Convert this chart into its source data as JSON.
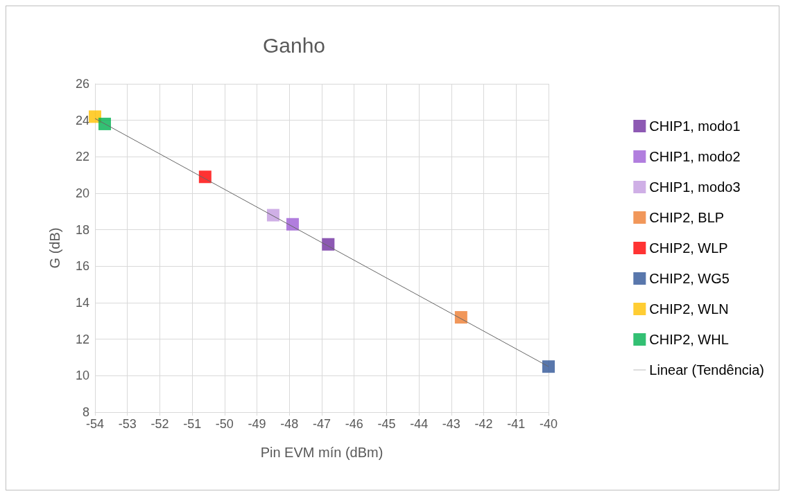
{
  "chart_data": {
    "type": "scatter",
    "title": "Ganho",
    "xlabel": "Pin EVM mín (dBm)",
    "ylabel": "G (dB)",
    "marker": "square",
    "grid": true,
    "legend": "right",
    "xlim": [
      -54,
      -40
    ],
    "xticks": [
      -54,
      -53,
      -52,
      -51,
      -50,
      -49,
      -48,
      -47,
      -46,
      -45,
      -44,
      -43,
      -42,
      -41,
      -40
    ],
    "ylim": [
      8,
      26
    ],
    "yticks": [
      8,
      10,
      12,
      14,
      16,
      18,
      20,
      22,
      24,
      26
    ],
    "series": [
      {
        "name": "CHIP1, modo1",
        "color": "#7030a0",
        "x": [
          -46.8
        ],
        "values": [
          17.2
        ]
      },
      {
        "name": "CHIP1, modo2",
        "color": "#9e5ed6",
        "x": [
          -47.9
        ],
        "values": [
          18.3
        ]
      },
      {
        "name": "CHIP1, modo3",
        "color": "#c39be0",
        "x": [
          -48.5
        ],
        "values": [
          18.8
        ]
      },
      {
        "name": "CHIP2, BLP",
        "color": "#ed7d31",
        "x": [
          -42.7
        ],
        "values": [
          13.2
        ]
      },
      {
        "name": "CHIP2, WLP",
        "color": "#ff0000",
        "x": [
          -50.6
        ],
        "values": [
          20.9
        ]
      },
      {
        "name": "CHIP2, WG5",
        "color": "#2f5597",
        "x": [
          -40.0
        ],
        "values": [
          10.5
        ]
      },
      {
        "name": "CHIP2, WLN",
        "color": "#ffc000",
        "x": [
          -54.0
        ],
        "values": [
          24.2
        ]
      },
      {
        "name": "CHIP2, WHL",
        "color": "#00b050",
        "x": [
          -53.7
        ],
        "values": [
          23.8
        ]
      },
      {
        "name": "Linear (Tendência)",
        "type": "line",
        "color": "#666666",
        "marker": "none",
        "line_style": "solid",
        "x": [
          -54,
          -40
        ],
        "values": [
          24.1,
          10.5
        ]
      }
    ]
  }
}
